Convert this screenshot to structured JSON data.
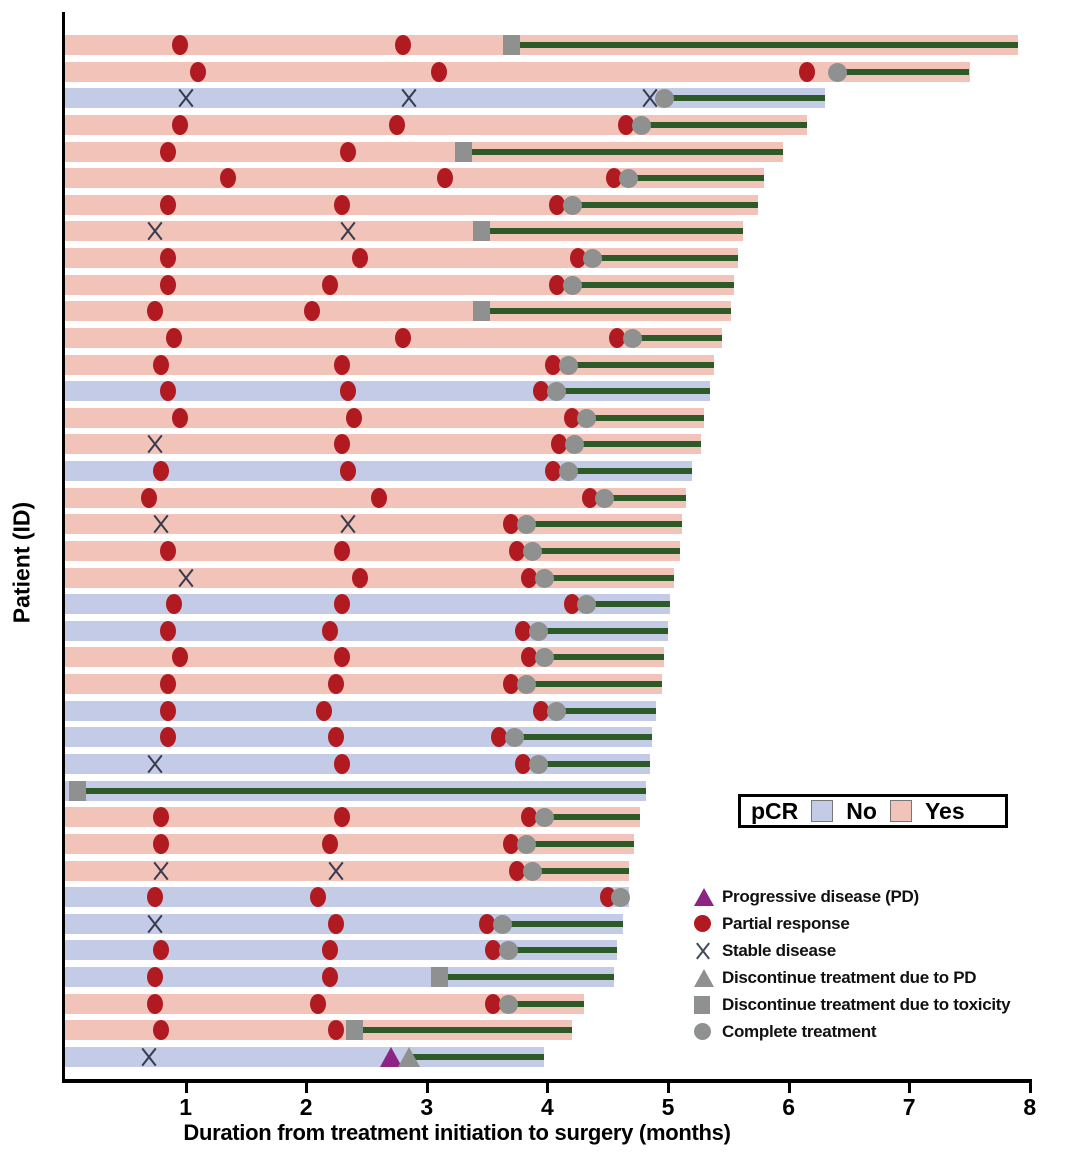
{
  "axes": {
    "x": {
      "label": "Duration from treatment initiation to surgery (months)",
      "ticks": [
        1,
        2,
        3,
        4,
        5,
        6,
        7,
        8
      ],
      "range": [
        0,
        8
      ]
    },
    "y": {
      "label": "Patient (ID)"
    }
  },
  "pcr_legend": {
    "title": "pCR",
    "items": [
      {
        "label": "No",
        "color": "#c3cbe6"
      },
      {
        "label": "Yes",
        "color": "#f2c3b8"
      }
    ]
  },
  "marker_legend": [
    {
      "icon": "triangle-icon",
      "color": "#8d2385",
      "label": "Progressive disease (PD)"
    },
    {
      "icon": "circle-icon",
      "color": "#b11a20",
      "label": "Partial response"
    },
    {
      "icon": "x-icon",
      "color": "#44485c",
      "label": "Stable disease"
    },
    {
      "icon": "triangle-icon",
      "color": "#8f9090",
      "label": "Discontinue treatment due to PD"
    },
    {
      "icon": "square-icon",
      "color": "#8f9090",
      "label": "Discontinue treatment due to toxicity"
    },
    {
      "icon": "circle-icon",
      "color": "#8f9090",
      "label": "Complete treatment"
    }
  ],
  "colors": {
    "pcr_yes": "#f2c3b8",
    "pcr_no": "#c3cbe6",
    "partial_response": "#b11a20",
    "stable_disease": "#383b4e",
    "progressive_disease": "#8d2385",
    "discontinue_gray": "#8f9090",
    "treatment_line": "#2d5b28",
    "axis": "#000000"
  },
  "chart_data": {
    "type": "bar",
    "subtype": "swimmer-plot",
    "xlabel": "Duration from treatment initiation to surgery (months)",
    "ylabel": "Patient (ID)",
    "x_range": [
      0,
      8
    ],
    "grid": false,
    "marker_types": {
      "pr": "Partial response",
      "sd": "Stable disease",
      "pd": "Progressive disease (PD)",
      "complete": "Complete treatment",
      "toxicity": "Discontinue treatment due to toxicity",
      "discont_pd": "Discontinue treatment due to PD"
    },
    "patients": [
      {
        "pcr": "Yes",
        "events": [
          {
            "t": "pr",
            "m": 0.95
          },
          {
            "t": "pr",
            "m": 2.8
          }
        ],
        "end": {
          "t": "toxicity",
          "m": 3.7
        },
        "surgery": 7.9
      },
      {
        "pcr": "Yes",
        "events": [
          {
            "t": "pr",
            "m": 1.1
          },
          {
            "t": "pr",
            "m": 3.1
          },
          {
            "t": "pr",
            "m": 6.15
          }
        ],
        "end": {
          "t": "complete",
          "m": 6.4
        },
        "surgery": 7.5
      },
      {
        "pcr": "No",
        "events": [
          {
            "t": "sd",
            "m": 1.0
          },
          {
            "t": "sd",
            "m": 2.85
          },
          {
            "t": "sd",
            "m": 4.85
          }
        ],
        "end": {
          "t": "complete",
          "m": 4.97
        },
        "surgery": 6.3
      },
      {
        "pcr": "Yes",
        "events": [
          {
            "t": "pr",
            "m": 0.95
          },
          {
            "t": "pr",
            "m": 2.75
          },
          {
            "t": "pr",
            "m": 4.65
          }
        ],
        "end": {
          "t": "complete",
          "m": 4.78
        },
        "surgery": 6.15
      },
      {
        "pcr": "Yes",
        "events": [
          {
            "t": "pr",
            "m": 0.85
          },
          {
            "t": "pr",
            "m": 2.35
          }
        ],
        "end": {
          "t": "toxicity",
          "m": 3.3
        },
        "surgery": 5.95
      },
      {
        "pcr": "Yes",
        "events": [
          {
            "t": "pr",
            "m": 1.35
          },
          {
            "t": "pr",
            "m": 3.15
          },
          {
            "t": "pr",
            "m": 4.55
          }
        ],
        "end": {
          "t": "complete",
          "m": 4.67
        },
        "surgery": 5.8
      },
      {
        "pcr": "Yes",
        "events": [
          {
            "t": "pr",
            "m": 0.85
          },
          {
            "t": "pr",
            "m": 2.3
          },
          {
            "t": "pr",
            "m": 4.08
          }
        ],
        "end": {
          "t": "complete",
          "m": 4.2
        },
        "surgery": 5.75
      },
      {
        "pcr": "Yes",
        "events": [
          {
            "t": "sd",
            "m": 0.75
          },
          {
            "t": "sd",
            "m": 2.35
          }
        ],
        "end": {
          "t": "toxicity",
          "m": 3.45
        },
        "surgery": 5.62
      },
      {
        "pcr": "Yes",
        "events": [
          {
            "t": "pr",
            "m": 0.85
          },
          {
            "t": "pr",
            "m": 2.45
          },
          {
            "t": "pr",
            "m": 4.25
          }
        ],
        "end": {
          "t": "complete",
          "m": 4.37
        },
        "surgery": 5.58
      },
      {
        "pcr": "Yes",
        "events": [
          {
            "t": "pr",
            "m": 0.85
          },
          {
            "t": "pr",
            "m": 2.2
          },
          {
            "t": "pr",
            "m": 4.08
          }
        ],
        "end": {
          "t": "complete",
          "m": 4.2
        },
        "surgery": 5.55
      },
      {
        "pcr": "Yes",
        "events": [
          {
            "t": "pr",
            "m": 0.75
          },
          {
            "t": "pr",
            "m": 2.05
          }
        ],
        "end": {
          "t": "toxicity",
          "m": 3.45
        },
        "surgery": 5.52
      },
      {
        "pcr": "Yes",
        "events": [
          {
            "t": "pr",
            "m": 0.9
          },
          {
            "t": "pr",
            "m": 2.8
          },
          {
            "t": "pr",
            "m": 4.58
          }
        ],
        "end": {
          "t": "complete",
          "m": 4.7
        },
        "surgery": 5.45
      },
      {
        "pcr": "Yes",
        "events": [
          {
            "t": "pr",
            "m": 0.8
          },
          {
            "t": "pr",
            "m": 2.3
          },
          {
            "t": "pr",
            "m": 4.05
          }
        ],
        "end": {
          "t": "complete",
          "m": 4.17
        },
        "surgery": 5.38
      },
      {
        "pcr": "No",
        "events": [
          {
            "t": "pr",
            "m": 0.85
          },
          {
            "t": "pr",
            "m": 2.35
          },
          {
            "t": "pr",
            "m": 3.95
          }
        ],
        "end": {
          "t": "complete",
          "m": 4.07
        },
        "surgery": 5.35
      },
      {
        "pcr": "Yes",
        "events": [
          {
            "t": "pr",
            "m": 0.95
          },
          {
            "t": "pr",
            "m": 2.4
          },
          {
            "t": "pr",
            "m": 4.2
          }
        ],
        "end": {
          "t": "complete",
          "m": 4.32
        },
        "surgery": 5.3
      },
      {
        "pcr": "Yes",
        "events": [
          {
            "t": "sd",
            "m": 0.75
          },
          {
            "t": "pr",
            "m": 2.3
          },
          {
            "t": "pr",
            "m": 4.1
          }
        ],
        "end": {
          "t": "complete",
          "m": 4.22
        },
        "surgery": 5.27
      },
      {
        "pcr": "No",
        "events": [
          {
            "t": "pr",
            "m": 0.8
          },
          {
            "t": "pr",
            "m": 2.35
          },
          {
            "t": "pr",
            "m": 4.05
          }
        ],
        "end": {
          "t": "complete",
          "m": 4.17
        },
        "surgery": 5.2
      },
      {
        "pcr": "Yes",
        "events": [
          {
            "t": "pr",
            "m": 0.7
          },
          {
            "t": "pr",
            "m": 2.6
          },
          {
            "t": "pr",
            "m": 4.35
          }
        ],
        "end": {
          "t": "complete",
          "m": 4.47
        },
        "surgery": 5.15
      },
      {
        "pcr": "Yes",
        "events": [
          {
            "t": "sd",
            "m": 0.8
          },
          {
            "t": "sd",
            "m": 2.35
          },
          {
            "t": "pr",
            "m": 3.7
          }
        ],
        "end": {
          "t": "complete",
          "m": 3.82
        },
        "surgery": 5.12
      },
      {
        "pcr": "Yes",
        "events": [
          {
            "t": "pr",
            "m": 0.85
          },
          {
            "t": "pr",
            "m": 2.3
          },
          {
            "t": "pr",
            "m": 3.75
          }
        ],
        "end": {
          "t": "complete",
          "m": 3.87
        },
        "surgery": 5.1
      },
      {
        "pcr": "Yes",
        "events": [
          {
            "t": "sd",
            "m": 1.0
          },
          {
            "t": "pr",
            "m": 2.45
          },
          {
            "t": "pr",
            "m": 3.85
          }
        ],
        "end": {
          "t": "complete",
          "m": 3.97
        },
        "surgery": 5.05
      },
      {
        "pcr": "No",
        "events": [
          {
            "t": "pr",
            "m": 0.9
          },
          {
            "t": "pr",
            "m": 2.3
          },
          {
            "t": "pr",
            "m": 4.2
          }
        ],
        "end": {
          "t": "complete",
          "m": 4.32
        },
        "surgery": 5.02
      },
      {
        "pcr": "No",
        "events": [
          {
            "t": "pr",
            "m": 0.85
          },
          {
            "t": "pr",
            "m": 2.2
          },
          {
            "t": "pr",
            "m": 3.8
          }
        ],
        "end": {
          "t": "complete",
          "m": 3.92
        },
        "surgery": 5.0
      },
      {
        "pcr": "Yes",
        "events": [
          {
            "t": "pr",
            "m": 0.95
          },
          {
            "t": "pr",
            "m": 2.3
          },
          {
            "t": "pr",
            "m": 3.85
          }
        ],
        "end": {
          "t": "complete",
          "m": 3.97
        },
        "surgery": 4.97
      },
      {
        "pcr": "Yes",
        "events": [
          {
            "t": "pr",
            "m": 0.85
          },
          {
            "t": "pr",
            "m": 2.25
          },
          {
            "t": "pr",
            "m": 3.7
          }
        ],
        "end": {
          "t": "complete",
          "m": 3.82
        },
        "surgery": 4.95
      },
      {
        "pcr": "No",
        "events": [
          {
            "t": "pr",
            "m": 0.85
          },
          {
            "t": "pr",
            "m": 2.15
          },
          {
            "t": "pr",
            "m": 3.95
          }
        ],
        "end": {
          "t": "complete",
          "m": 4.07
        },
        "surgery": 4.9
      },
      {
        "pcr": "No",
        "events": [
          {
            "t": "pr",
            "m": 0.85
          },
          {
            "t": "pr",
            "m": 2.25
          },
          {
            "t": "pr",
            "m": 3.6
          }
        ],
        "end": {
          "t": "complete",
          "m": 3.72
        },
        "surgery": 4.87
      },
      {
        "pcr": "No",
        "events": [
          {
            "t": "sd",
            "m": 0.75
          },
          {
            "t": "pr",
            "m": 2.3
          },
          {
            "t": "pr",
            "m": 3.8
          }
        ],
        "end": {
          "t": "complete",
          "m": 3.92
        },
        "surgery": 4.85
      },
      {
        "pcr": "No",
        "events": [],
        "end": {
          "t": "toxicity",
          "m": 0.1
        },
        "surgery": 4.82
      },
      {
        "pcr": "Yes",
        "events": [
          {
            "t": "pr",
            "m": 0.8
          },
          {
            "t": "pr",
            "m": 2.3
          },
          {
            "t": "pr",
            "m": 3.85
          }
        ],
        "end": {
          "t": "complete",
          "m": 3.97
        },
        "surgery": 4.77
      },
      {
        "pcr": "Yes",
        "events": [
          {
            "t": "pr",
            "m": 0.8
          },
          {
            "t": "pr",
            "m": 2.2
          },
          {
            "t": "pr",
            "m": 3.7
          }
        ],
        "end": {
          "t": "complete",
          "m": 3.82
        },
        "surgery": 4.72
      },
      {
        "pcr": "Yes",
        "events": [
          {
            "t": "sd",
            "m": 0.8
          },
          {
            "t": "sd",
            "m": 2.25
          },
          {
            "t": "pr",
            "m": 3.75
          }
        ],
        "end": {
          "t": "complete",
          "m": 3.87
        },
        "surgery": 4.68
      },
      {
        "pcr": "No",
        "events": [
          {
            "t": "pr",
            "m": 0.75
          },
          {
            "t": "pr",
            "m": 2.1
          },
          {
            "t": "pr",
            "m": 4.5
          }
        ],
        "end": {
          "t": "complete",
          "m": 4.6
        },
        "surgery": 4.68
      },
      {
        "pcr": "No",
        "events": [
          {
            "t": "sd",
            "m": 0.75
          },
          {
            "t": "pr",
            "m": 2.25
          },
          {
            "t": "pr",
            "m": 3.5
          }
        ],
        "end": {
          "t": "complete",
          "m": 3.62
        },
        "surgery": 4.63
      },
      {
        "pcr": "No",
        "events": [
          {
            "t": "pr",
            "m": 0.8
          },
          {
            "t": "pr",
            "m": 2.2
          },
          {
            "t": "pr",
            "m": 3.55
          }
        ],
        "end": {
          "t": "complete",
          "m": 3.67
        },
        "surgery": 4.58
      },
      {
        "pcr": "No",
        "events": [
          {
            "t": "pr",
            "m": 0.75
          },
          {
            "t": "pr",
            "m": 2.2
          }
        ],
        "end": {
          "t": "toxicity",
          "m": 3.1
        },
        "surgery": 4.55
      },
      {
        "pcr": "Yes",
        "events": [
          {
            "t": "pr",
            "m": 0.75
          },
          {
            "t": "pr",
            "m": 2.1
          },
          {
            "t": "pr",
            "m": 3.55
          }
        ],
        "end": {
          "t": "complete",
          "m": 3.67
        },
        "surgery": 4.3
      },
      {
        "pcr": "Yes",
        "events": [
          {
            "t": "pr",
            "m": 0.8
          },
          {
            "t": "pr",
            "m": 2.25
          }
        ],
        "end": {
          "t": "toxicity",
          "m": 2.4
        },
        "surgery": 4.2
      },
      {
        "pcr": "No",
        "events": [
          {
            "t": "sd",
            "m": 0.7
          },
          {
            "t": "pd",
            "m": 2.7
          }
        ],
        "end": {
          "t": "discont_pd",
          "m": 2.85
        },
        "surgery": 3.97
      }
    ]
  }
}
